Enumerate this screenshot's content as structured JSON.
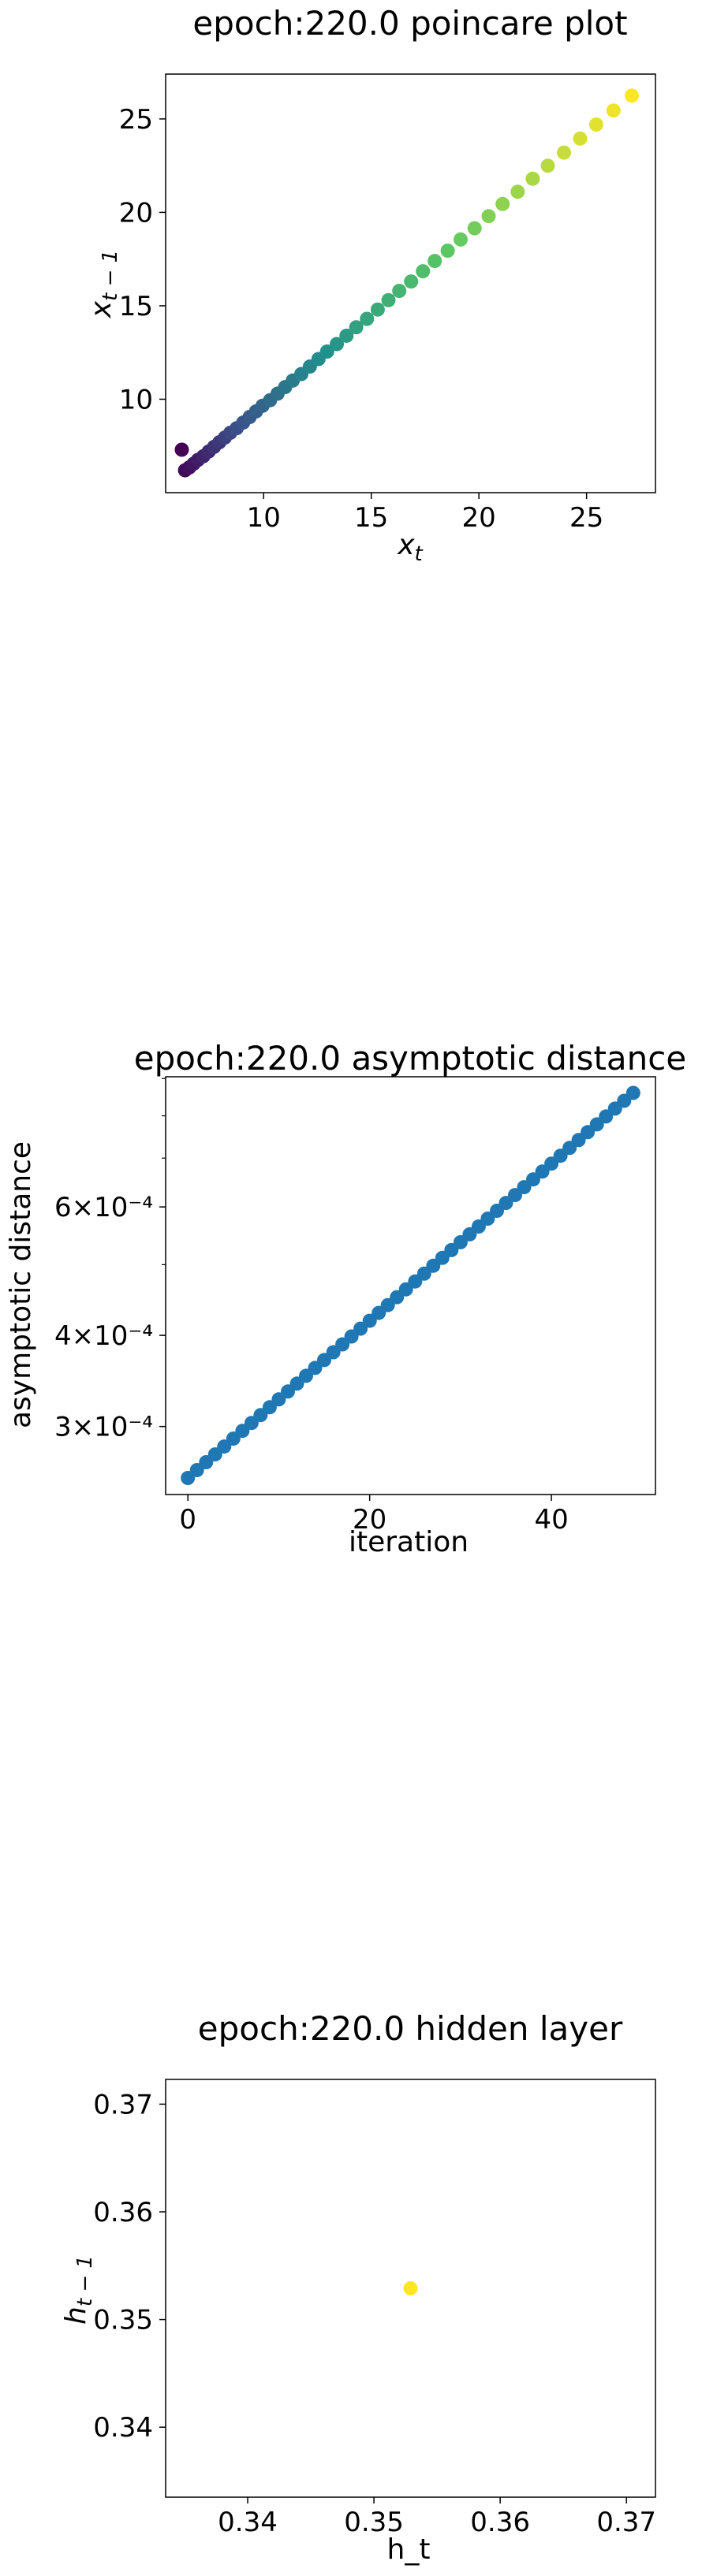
{
  "chart_data": [
    {
      "type": "scatter",
      "title": "epoch:220.0 poincare plot",
      "xlabel": "x_t",
      "ylabel": "x_{t-1}",
      "xlim": [
        5.45,
        28.2
      ],
      "ylim": [
        5.0,
        27.4
      ],
      "xticks": [
        10,
        15,
        20,
        25
      ],
      "yticks": [
        10,
        15,
        20,
        25
      ],
      "colormap": "viridis",
      "grid": false,
      "points": [
        [
          6.2,
          7.3
        ],
        [
          6.35,
          6.2
        ],
        [
          6.55,
          6.35
        ],
        [
          6.75,
          6.55
        ],
        [
          6.95,
          6.75
        ],
        [
          7.2,
          6.95
        ],
        [
          7.45,
          7.2
        ],
        [
          7.7,
          7.45
        ],
        [
          7.95,
          7.7
        ],
        [
          8.2,
          7.95
        ],
        [
          8.45,
          8.2
        ],
        [
          8.75,
          8.45
        ],
        [
          9.05,
          8.75
        ],
        [
          9.35,
          9.05
        ],
        [
          9.65,
          9.35
        ],
        [
          9.95,
          9.65
        ],
        [
          10.3,
          9.95
        ],
        [
          10.65,
          10.3
        ],
        [
          11.0,
          10.65
        ],
        [
          11.35,
          11.0
        ],
        [
          11.75,
          11.35
        ],
        [
          12.15,
          11.75
        ],
        [
          12.55,
          12.15
        ],
        [
          12.95,
          12.55
        ],
        [
          13.4,
          12.95
        ],
        [
          13.85,
          13.4
        ],
        [
          14.3,
          13.85
        ],
        [
          14.8,
          14.3
        ],
        [
          15.3,
          14.8
        ],
        [
          15.8,
          15.3
        ],
        [
          16.3,
          15.8
        ],
        [
          16.85,
          16.3
        ],
        [
          17.4,
          16.85
        ],
        [
          17.95,
          17.4
        ],
        [
          18.55,
          17.95
        ],
        [
          19.15,
          18.55
        ],
        [
          19.8,
          19.15
        ],
        [
          20.45,
          19.8
        ],
        [
          21.1,
          20.45
        ],
        [
          21.8,
          21.1
        ],
        [
          22.5,
          21.8
        ],
        [
          23.2,
          22.5
        ],
        [
          23.95,
          23.2
        ],
        [
          24.7,
          23.95
        ],
        [
          25.45,
          24.7
        ],
        [
          26.25,
          25.45
        ],
        [
          27.1,
          26.25
        ]
      ]
    },
    {
      "type": "scatter",
      "title": "epoch:220.0 asymptotic distance",
      "xlabel": "iteration",
      "ylabel": "asymptotic distance",
      "yscale": "log",
      "color": "#1f77b4",
      "grid": false,
      "xlim": [
        -2.45,
        51.45
      ],
      "ylim": [
        0.000242,
        0.000905
      ],
      "xticks": [
        0,
        20,
        40
      ],
      "yticks": [
        {
          "value": 0.0003,
          "label": "3×10⁻⁴"
        },
        {
          "value": 0.0004,
          "label": "4×10⁻⁴"
        },
        {
          "value": 0.0006,
          "label": "6×10⁻⁴"
        }
      ],
      "x": [
        0,
        1,
        2,
        3,
        4,
        5,
        6,
        7,
        8,
        9,
        10,
        11,
        12,
        13,
        14,
        15,
        16,
        17,
        18,
        19,
        20,
        21,
        22,
        23,
        24,
        25,
        26,
        27,
        28,
        29,
        30,
        31,
        32,
        33,
        34,
        35,
        36,
        37,
        38,
        39,
        40,
        41,
        42,
        43,
        43.99,
        45,
        46,
        47,
        48,
        49
      ],
      "y_start": 0.000255,
      "y_end": 0.00086
    },
    {
      "type": "scatter",
      "title": "epoch:220.0 hidden layer",
      "xlabel": "h_t",
      "ylabel": "h_{t-1}",
      "xlim": [
        0.3335,
        0.3723
      ],
      "ylim": [
        0.3335,
        0.3723
      ],
      "xticks": [
        0.34,
        0.35,
        0.36,
        0.37
      ],
      "yticks": [
        0.34,
        0.35,
        0.36,
        0.37
      ],
      "color": "#fde725",
      "grid": false,
      "points": [
        [
          0.3529,
          0.3529
        ]
      ]
    }
  ]
}
